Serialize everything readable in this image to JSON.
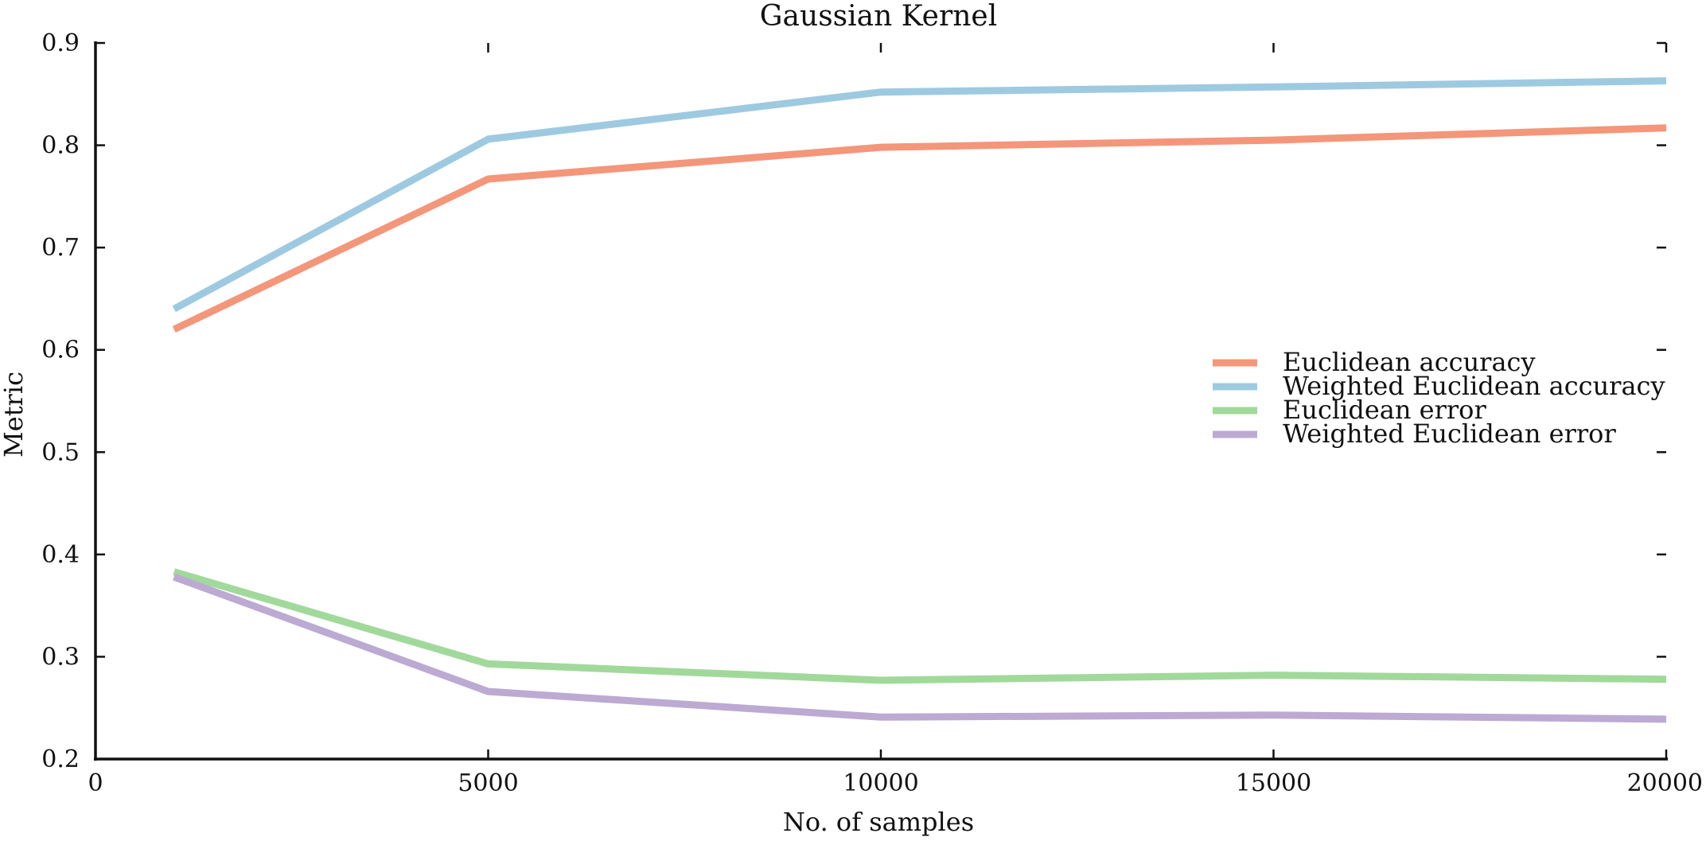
{
  "chart_data": {
    "type": "line",
    "title": "Gaussian Kernel",
    "xlabel": "No.  of samples",
    "ylabel": "Metric",
    "xlim": [
      0,
      20000
    ],
    "ylim": [
      0.2,
      0.9
    ],
    "x_ticks": [
      0,
      5000,
      10000,
      15000,
      20000
    ],
    "x_tick_labels": [
      "0",
      "5000",
      "10000",
      "15000",
      "20000"
    ],
    "y_ticks": [
      0.2,
      0.3,
      0.4,
      0.5,
      0.6,
      0.7,
      0.8,
      0.9
    ],
    "y_tick_labels": [
      "0.2",
      "0.3",
      "0.4",
      "0.5",
      "0.6",
      "0.7",
      "0.8",
      "0.9"
    ],
    "grid": false,
    "legend_position": "right",
    "x": [
      1000,
      5000,
      10000,
      15000,
      20000
    ],
    "series": [
      {
        "name": "Euclidean accuracy",
        "color": "#f4967a",
        "values": [
          0.62,
          0.767,
          0.798,
          0.805,
          0.817
        ]
      },
      {
        "name": "Weighted Euclidean accuracy",
        "color": "#9ecae1",
        "values": [
          0.64,
          0.806,
          0.852,
          0.857,
          0.863
        ]
      },
      {
        "name": "Euclidean error",
        "color": "#a1d99b",
        "values": [
          0.383,
          0.293,
          0.277,
          0.282,
          0.278
        ]
      },
      {
        "name": "Weighted Euclidean error",
        "color": "#bcaad3",
        "values": [
          0.378,
          0.266,
          0.241,
          0.243,
          0.239
        ]
      }
    ]
  }
}
